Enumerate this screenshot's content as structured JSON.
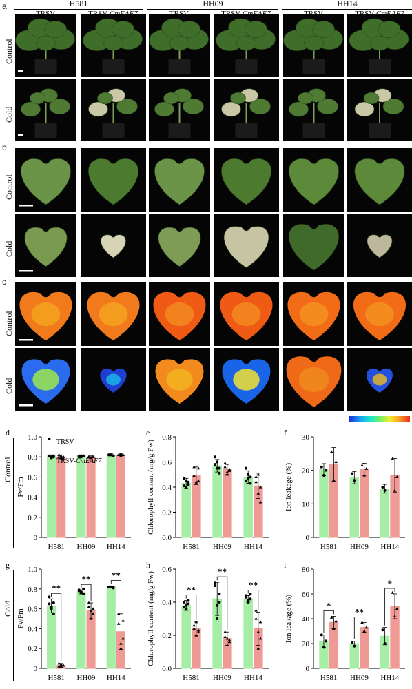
{
  "panel_letters": {
    "a": "a",
    "b": "b",
    "c": "c",
    "d": "d",
    "e": "e",
    "f": "f",
    "g": "g",
    "h": "h",
    "i": "i"
  },
  "cultivars": [
    "H581",
    "HH09",
    "HH14"
  ],
  "columns": {
    "trsv": "TRSV",
    "trsv_eaf7_prefix": "TRSV-",
    "trsv_eaf7_gene": "CmEAF7"
  },
  "rows": {
    "control": "Control",
    "cold": "Cold"
  },
  "legend": {
    "trsv": "TRSV",
    "trsv_eaf7_prefix": "TRSV-",
    "trsv_eaf7_gene": "CmEAF7"
  },
  "colors": {
    "trsv": "#a6eda6",
    "eaf7": "#f09a96",
    "bg_tile": "#050505"
  },
  "stats": {
    "double_star": "**",
    "single_star": "*"
  },
  "chart_data": [
    {
      "id": "d",
      "type": "bar",
      "title": "",
      "row": "Control",
      "ylabel": "Fv/Fm",
      "ylim": [
        0,
        1.0
      ],
      "yticks": [
        0,
        0.2,
        0.4,
        0.6,
        0.8,
        1.0
      ],
      "yticklabels": [
        "0",
        "0.2",
        "0.4",
        "0.6",
        "0.8",
        "1.0"
      ],
      "categories": [
        "H581",
        "HH09",
        "HH14"
      ],
      "series": [
        {
          "name": "TRSV",
          "values": [
            0.81,
            0.81,
            0.82
          ],
          "err": [
            0.01,
            0.01,
            0.01
          ]
        },
        {
          "name": "TRSV-CmEAF7",
          "values": [
            0.8,
            0.8,
            0.82
          ],
          "err": [
            0.02,
            0.01,
            0.01
          ]
        }
      ],
      "points": [
        [
          [
            0.98,
            0.8,
            0.81,
            0.81,
            0.79,
            0.8
          ],
          [
            0.82,
            0.79,
            0.78,
            0.8,
            0.81,
            0.8
          ]
        ],
        [
          [
            0.81,
            0.8,
            0.81,
            0.8,
            0.81,
            0.81
          ],
          [
            0.8,
            0.79,
            0.8,
            0.8,
            0.79,
            0.8
          ]
        ],
        [
          [
            0.82,
            0.82,
            0.81,
            0.82,
            0.82,
            0.81
          ],
          [
            0.82,
            0.83,
            0.82,
            0.82,
            0.81,
            0.82
          ]
        ]
      ],
      "sig": []
    },
    {
      "id": "e",
      "type": "bar",
      "title": "",
      "row": "Control",
      "ylabel": "Chlorophyll content (mg/g Fw)",
      "ylim": [
        0,
        0.8
      ],
      "yticks": [
        0,
        0.2,
        0.4,
        0.6,
        0.8
      ],
      "yticklabels": [
        "0.0",
        "0.2",
        "0.4",
        "0.6",
        "0.8"
      ],
      "categories": [
        "H581",
        "HH09",
        "HH14"
      ],
      "series": [
        {
          "name": "TRSV",
          "values": [
            0.43,
            0.57,
            0.48
          ],
          "err": [
            0.04,
            0.05,
            0.05
          ]
        },
        {
          "name": "TRSV-CmEAF7",
          "values": [
            0.49,
            0.54,
            0.41
          ],
          "err": [
            0.07,
            0.04,
            0.1
          ]
        }
      ],
      "points": [
        [
          [
            0.47,
            0.4,
            0.44,
            0.41,
            0.45,
            0.42
          ],
          [
            0.56,
            0.43,
            0.45,
            0.49,
            0.44,
            0.55
          ]
        ],
        [
          [
            0.64,
            0.55,
            0.51,
            0.58,
            0.6,
            0.55
          ],
          [
            0.59,
            0.5,
            0.53,
            0.56,
            0.52,
            0.54
          ]
        ],
        [
          [
            0.55,
            0.47,
            0.43,
            0.45,
            0.5,
            0.48
          ],
          [
            0.48,
            0.35,
            0.28,
            0.44,
            0.5,
            0.4
          ]
        ]
      ],
      "sig": []
    },
    {
      "id": "f",
      "type": "bar",
      "title": "",
      "row": "Control",
      "ylabel": "Ion leakage (%)",
      "ylim": [
        0,
        30
      ],
      "yticks": [
        0,
        10,
        20,
        30
      ],
      "yticklabels": [
        "0",
        "10",
        "20",
        "30"
      ],
      "categories": [
        "H581",
        "HH09",
        "HH14"
      ],
      "series": [
        {
          "name": "TRSV",
          "values": [
            20.2,
            17.8,
            14.5
          ],
          "err": [
            1.8,
            1.8,
            1.3
          ]
        },
        {
          "name": "TRSV-CmEAF7",
          "values": [
            21.8,
            20.3,
            18.5
          ],
          "err": [
            5.0,
            1.8,
            5.0
          ]
        }
      ],
      "points": [
        [
          [
            21.0,
            18.5,
            20.0
          ],
          [
            25.5,
            17.0,
            22.5
          ]
        ],
        [
          [
            19.0,
            17.0
          ],
          [
            21.5,
            18.5,
            20.5
          ]
        ],
        [
          [
            15.0,
            14.0
          ],
          [
            23.5,
            14.0,
            18.0
          ]
        ]
      ],
      "sig": []
    },
    {
      "id": "g",
      "type": "bar",
      "title": "",
      "row": "Cold",
      "ylabel": "Fv/Fm",
      "ylim": [
        0,
        1.0
      ],
      "yticks": [
        0,
        0.2,
        0.4,
        0.6,
        0.8,
        1.0
      ],
      "yticklabels": [
        "0",
        "0.2",
        "0.4",
        "0.6",
        "0.8",
        "1.0"
      ],
      "categories": [
        "H581",
        "HH09",
        "HH14"
      ],
      "series": [
        {
          "name": "TRSV",
          "values": [
            0.63,
            0.77,
            0.82
          ],
          "err": [
            0.07,
            0.02,
            0.01
          ]
        },
        {
          "name": "TRSV-CmEAF7",
          "values": [
            0.03,
            0.58,
            0.37
          ],
          "err": [
            0.02,
            0.08,
            0.18
          ]
        }
      ],
      "points": [
        [
          [
            0.72,
            0.6,
            0.55,
            0.65,
            0.62,
            0.66
          ],
          [
            0.02,
            0.04,
            0.03,
            0.05,
            0.02,
            0.03
          ]
        ],
        [
          [
            0.79,
            0.76,
            0.75,
            0.78,
            0.77,
            0.8
          ],
          [
            0.66,
            0.5,
            0.55,
            0.62,
            0.58,
            0.6
          ]
        ],
        [
          [
            0.82,
            0.82,
            0.81,
            0.82,
            0.82,
            0.82
          ],
          [
            0.55,
            0.2,
            0.3,
            0.45,
            0.25,
            0.48
          ]
        ]
      ],
      "sig": [
        "**",
        "**",
        "**"
      ]
    },
    {
      "id": "h",
      "type": "bar",
      "title": "",
      "row": "Cold",
      "ylabel": "Chlorophyll content (mg/g Fw)",
      "ylim": [
        0,
        0.6
      ],
      "yticks": [
        0,
        0.2,
        0.4,
        0.6
      ],
      "yticklabels": [
        "0.0",
        "0.2",
        "0.4",
        "0.6"
      ],
      "categories": [
        "H581",
        "HH09",
        "HH14"
      ],
      "series": [
        {
          "name": "TRSV",
          "values": [
            0.38,
            0.42,
            0.42
          ],
          "err": [
            0.03,
            0.1,
            0.02
          ]
        },
        {
          "name": "TRSV-CmEAF7",
          "values": [
            0.24,
            0.18,
            0.24
          ],
          "err": [
            0.04,
            0.04,
            0.1
          ]
        }
      ],
      "points": [
        [
          [
            0.4,
            0.36,
            0.39,
            0.37,
            0.38,
            0.41
          ],
          [
            0.26,
            0.2,
            0.22,
            0.24,
            0.28,
            0.23
          ]
        ],
        [
          [
            0.52,
            0.3,
            0.45,
            0.5,
            0.38,
            0.4
          ],
          [
            0.22,
            0.14,
            0.16,
            0.19,
            0.18,
            0.17
          ]
        ],
        [
          [
            0.44,
            0.4,
            0.42,
            0.43,
            0.41,
            0.45
          ],
          [
            0.35,
            0.12,
            0.18,
            0.3,
            0.22,
            0.28
          ]
        ]
      ],
      "sig": [
        "**",
        "**",
        "**"
      ]
    },
    {
      "id": "i",
      "type": "bar",
      "title": "",
      "row": "Cold",
      "ylabel": "Ion leakage (%)",
      "ylim": [
        0,
        80
      ],
      "yticks": [
        0,
        20,
        40,
        60,
        80
      ],
      "yticklabels": [
        "0",
        "20",
        "40",
        "60",
        "80"
      ],
      "categories": [
        "H581",
        "HH09",
        "HH14"
      ],
      "series": [
        {
          "name": "TRSV",
          "values": [
            22,
            20,
            26
          ],
          "err": [
            5,
            2,
            7
          ]
        },
        {
          "name": "TRSV-CmEAF7",
          "values": [
            37,
            33,
            50
          ],
          "err": [
            5,
            4,
            10
          ]
        }
      ],
      "points": [
        [
          [
            27,
            17,
            22
          ],
          [
            41,
            32,
            38
          ]
        ],
        [
          [
            21,
            18
          ],
          [
            37,
            30,
            33
          ]
        ],
        [
          [
            31,
            20
          ],
          [
            61,
            42,
            48
          ]
        ]
      ],
      "sig": [
        "*",
        "**",
        "*"
      ]
    }
  ]
}
